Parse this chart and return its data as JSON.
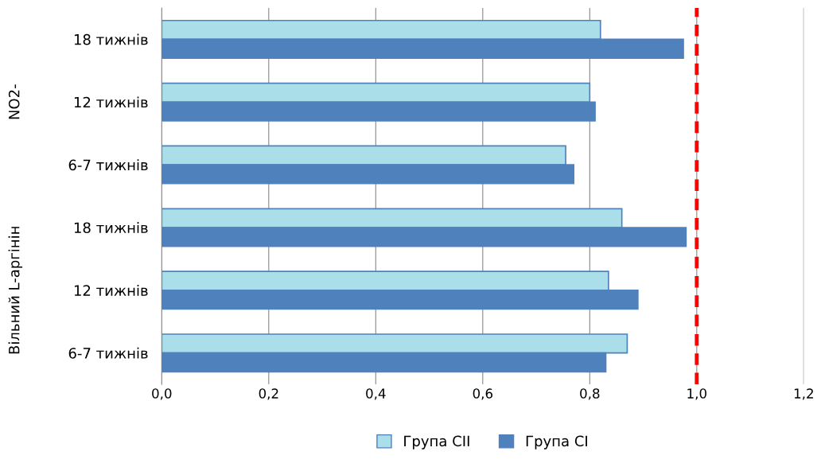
{
  "chart_data": {
    "type": "bar",
    "orientation": "horizontal",
    "categories": [
      "18 тижнів",
      "12 тижнів",
      "6-7 тижнів",
      "18 тижнів",
      "12 тижнів",
      "6-7 тижнів"
    ],
    "series": [
      {
        "name": "Група СII",
        "color": "#aadfea",
        "values": [
          0.82,
          0.8,
          0.755,
          0.86,
          0.835,
          0.87
        ]
      },
      {
        "name": "Група СI",
        "color": "#4f81bd",
        "values": [
          0.975,
          0.81,
          0.77,
          0.98,
          0.89,
          0.83
        ]
      }
    ],
    "annotations": [
      "NO2-",
      "Вільний L-аргінін"
    ],
    "xlim": [
      0,
      1.2
    ],
    "xticks": [
      {
        "value": 0,
        "label": "0,0"
      },
      {
        "value": 0.2,
        "label": "0,2"
      },
      {
        "value": 0.4,
        "label": "0,4"
      },
      {
        "value": 0.6,
        "label": "0,6"
      },
      {
        "value": 0.8,
        "label": "0,8"
      },
      {
        "value": 1.0,
        "label": "1,0"
      },
      {
        "value": 1.2,
        "label": "1,2"
      }
    ],
    "ref_lines": [
      {
        "axis": "x",
        "value": 1.0,
        "color": "#ff0000",
        "line_style": "dashed"
      }
    ],
    "grid": "x",
    "legend": "bottom"
  }
}
